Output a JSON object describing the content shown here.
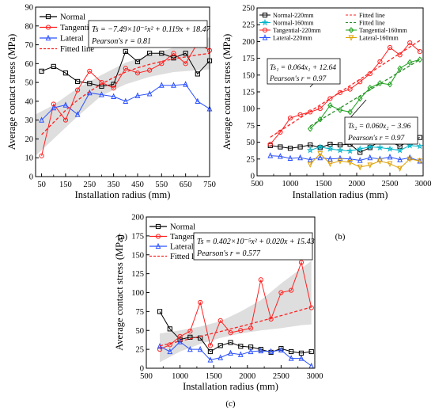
{
  "chart_data": [
    {
      "panel_label": "(a)",
      "type": "line",
      "xlabel": "Installation radius (mm)",
      "ylabel": "Average contact stress (MPa)",
      "xlim": [
        25,
        750
      ],
      "ylim": [
        0,
        90
      ],
      "xticks": [
        50,
        150,
        250,
        350,
        450,
        550,
        650,
        750
      ],
      "xminor": [
        100,
        200,
        300,
        400,
        500,
        600,
        700
      ],
      "yticks": [
        0,
        10,
        20,
        30,
        40,
        50,
        60,
        70,
        80,
        90
      ],
      "legend_position": "top-left",
      "series": [
        {
          "name": "Normal",
          "color": "#000000",
          "marker": "square",
          "x": [
            50,
            100,
            150,
            200,
            250,
            300,
            350,
            400,
            450,
            500,
            550,
            600,
            650,
            700,
            750
          ],
          "y": [
            56,
            58.5,
            55,
            50.5,
            49.5,
            48,
            49,
            66.5,
            61,
            65.5,
            65.5,
            63,
            65.5,
            54.5,
            61.5
          ]
        },
        {
          "name": "Tangential",
          "color": "#ff2020",
          "marker": "circle",
          "x": [
            50,
            100,
            150,
            200,
            250,
            300,
            350,
            400,
            450,
            500,
            550,
            600,
            650,
            700,
            750
          ],
          "y": [
            11,
            38.5,
            30,
            46,
            56,
            50,
            47,
            57.5,
            55,
            56.5,
            60,
            65.5,
            60,
            71,
            67
          ]
        },
        {
          "name": "Lateral",
          "color": "#2a50ff",
          "marker": "triangle",
          "x": [
            50,
            100,
            150,
            200,
            250,
            300,
            350,
            400,
            450,
            500,
            550,
            600,
            650,
            700,
            750
          ],
          "y": [
            30,
            36.5,
            38,
            33,
            44.5,
            43.5,
            42.5,
            40,
            43,
            44,
            48.5,
            48.5,
            49,
            40,
            36
          ]
        },
        {
          "name": "Fitted line",
          "color": "#ff2020",
          "dash": true,
          "x": [
            50,
            100,
            150,
            200,
            250,
            300,
            350,
            400,
            450,
            500,
            550,
            600,
            650,
            700,
            750
          ],
          "y": [
            22.3,
            28.8,
            35.2,
            40.6,
            45.2,
            49.2,
            52.6,
            55.5,
            57.8,
            59.6,
            61.2,
            62.5,
            63.6,
            64.6,
            65.5
          ]
        }
      ],
      "band": {
        "x": [
          25,
          100,
          200,
          300,
          400,
          500,
          600,
          700,
          750
        ],
        "lower": [
          11,
          20,
          32,
          43,
          49,
          53,
          55.5,
          56.5,
          57
        ],
        "upper": [
          33,
          38,
          47,
          54,
          60.5,
          64.5,
          68.5,
          72,
          74
        ]
      },
      "annotation": {
        "equation": "Ts = −7.49×10⁻⁵x² + 0.119x + 18.47",
        "pearson": "Pearson's r = 0.81"
      }
    },
    {
      "panel_label": "(b)",
      "type": "line",
      "xlabel": "Installation radius (mm)",
      "ylabel": "Average contact stress (MPa)",
      "xlim": [
        500,
        3000
      ],
      "ylim": [
        0,
        250
      ],
      "xticks": [
        500,
        1000,
        1500,
        2000,
        2500,
        3000
      ],
      "xminor": [
        750,
        1250,
        1750,
        2250,
        2750
      ],
      "yticks": [
        0,
        25,
        50,
        75,
        100,
        125,
        150,
        175,
        200,
        225,
        250
      ],
      "legend_position": "top",
      "legend": [
        {
          "name": "Normal-220mm",
          "color": "#000000",
          "marker": "square"
        },
        {
          "name": "Fitted line",
          "color": "#ff2020",
          "dash": true
        },
        {
          "name": "Normal-160mm",
          "color": "#00b4c8",
          "marker": "star"
        },
        {
          "name": "Fitted line",
          "color": "#2a8a2a",
          "dash": true
        },
        {
          "name": "Tangential-220mm",
          "color": "#ff2020",
          "marker": "circle"
        },
        {
          "name": "Tangential-160mm",
          "color": "#1aa01a",
          "marker": "diamond"
        },
        {
          "name": "Lateral-220mm",
          "color": "#2a50ff",
          "marker": "triangle"
        },
        {
          "name": "Lateral-160mm",
          "color": "#e0a000",
          "marker": "triangle-down"
        }
      ],
      "series": [
        {
          "name": "Normal-220mm",
          "color": "#000000",
          "marker": "square",
          "x": [
            700,
            850,
            1000,
            1150,
            1300,
            1450,
            1600,
            1750,
            1900,
            2050,
            2200,
            2350,
            2500,
            2650,
            2800,
            2950
          ],
          "y": [
            45,
            43,
            41,
            43,
            46,
            42,
            47,
            46,
            47,
            35,
            42,
            52,
            51,
            44,
            53,
            57
          ]
        },
        {
          "name": "Tangential-220mm",
          "color": "#ff2020",
          "marker": "circle",
          "x": [
            700,
            850,
            1000,
            1150,
            1300,
            1450,
            1600,
            1750,
            1900,
            2050,
            2200,
            2350,
            2500,
            2650,
            2800,
            2950
          ],
          "y": [
            47,
            65,
            86,
            91,
            95,
            100,
            115,
            124,
            129,
            140,
            152,
            170,
            191,
            180,
            198,
            185
          ]
        },
        {
          "name": "Lateral-220mm",
          "color": "#2a50ff",
          "marker": "triangle",
          "x": [
            700,
            850,
            1000,
            1150,
            1300,
            1450,
            1600,
            1750,
            1900,
            2050,
            2200,
            2350,
            2500,
            2650,
            2800,
            2950
          ],
          "y": [
            30,
            29,
            26,
            27,
            24,
            27,
            25,
            26,
            25,
            23,
            27,
            25,
            28,
            24,
            27,
            22
          ]
        },
        {
          "name": "Normal-160mm",
          "color": "#00b4c8",
          "marker": "star",
          "x": [
            1300,
            1450,
            1600,
            1750,
            1900,
            2050,
            2200,
            2350,
            2500,
            2650,
            2800,
            2950
          ],
          "y": [
            38,
            43,
            40,
            38,
            37,
            40,
            43,
            42,
            40,
            38,
            45,
            44
          ]
        },
        {
          "name": "Tangential-160mm",
          "color": "#1aa01a",
          "marker": "diamond",
          "x": [
            1300,
            1450,
            1600,
            1750,
            1900,
            2050,
            2200,
            2350,
            2500,
            2650,
            2800,
            2950
          ],
          "y": [
            70,
            84,
            105,
            98,
            95,
            115,
            131,
            138,
            136,
            160,
            169,
            173
          ]
        },
        {
          "name": "Lateral-160mm",
          "color": "#e0a000",
          "marker": "triangle-down",
          "x": [
            1300,
            1450,
            1600,
            1750,
            1900,
            2050,
            2200,
            2350,
            2500,
            2650,
            2800,
            2950
          ],
          "y": [
            17,
            33,
            18,
            22,
            20,
            13,
            16,
            22,
            18,
            11,
            25,
            22
          ]
        },
        {
          "name": "Fitted line",
          "color": "#ff2020",
          "dash": true,
          "x": [
            700,
            2950
          ],
          "y": [
            57.4,
            201.4
          ]
        },
        {
          "name": "Fitted line",
          "color": "#2a8a2a",
          "dash": true,
          "x": [
            1300,
            2950
          ],
          "y": [
            74.0,
            173.0
          ]
        }
      ],
      "annotations": [
        {
          "equation": "Ts₁ = 0.064x₁ + 12.64",
          "pearson": "Pearson's r = 0.97"
        },
        {
          "equation": "Ts₂ = 0.060x₂ − 3.96",
          "pearson": "Pearson's r = 0.97"
        }
      ]
    },
    {
      "panel_label": "(c)",
      "type": "line",
      "xlabel": "Installation radius (mm)",
      "ylabel": "Average contact stress (MPa)",
      "xlim": [
        500,
        3000
      ],
      "ylim": [
        0,
        200
      ],
      "xticks": [
        500,
        1000,
        1500,
        2000,
        2500,
        3000
      ],
      "xminor": [
        750,
        1250,
        1750,
        2250,
        2750
      ],
      "yticks": [
        0,
        25,
        50,
        75,
        100,
        125,
        150,
        175,
        200
      ],
      "legend_position": "top-left",
      "series": [
        {
          "name": "Normal",
          "color": "#000000",
          "marker": "square",
          "x": [
            700,
            850,
            1000,
            1150,
            1300,
            1450,
            1600,
            1750,
            1900,
            2050,
            2200,
            2350,
            2500,
            2650,
            2800,
            2950
          ],
          "y": [
            75,
            52,
            38,
            41,
            40,
            22,
            30,
            34,
            29,
            28,
            25,
            21,
            26,
            22,
            20,
            22
          ]
        },
        {
          "name": "Tangential",
          "color": "#ff2020",
          "marker": "circle",
          "x": [
            700,
            850,
            1000,
            1150,
            1300,
            1450,
            1600,
            1750,
            1900,
            2050,
            2200,
            2350,
            2500,
            2650,
            2800,
            2950
          ],
          "y": [
            25,
            31,
            42,
            49,
            87,
            30,
            63,
            47,
            50,
            53,
            117,
            65,
            100,
            103,
            140,
            80
          ]
        },
        {
          "name": "Lateral",
          "color": "#2a50ff",
          "marker": "triangle",
          "x": [
            700,
            850,
            1000,
            1150,
            1300,
            1450,
            1600,
            1750,
            1900,
            2050,
            2200,
            2350,
            2500,
            2650,
            2800,
            2950
          ],
          "y": [
            29,
            22,
            35,
            25,
            25,
            11,
            14,
            20,
            18,
            22,
            23,
            22,
            24,
            13,
            13,
            3
          ]
        },
        {
          "name": "Fitted line",
          "color": "#ff2020",
          "dash": true,
          "x": [
            700,
            1000,
            1300,
            1600,
            1900,
            2200,
            2500,
            2800,
            2950
          ],
          "y": [
            29.6,
            35.8,
            42.1,
            48.6,
            55.3,
            62.3,
            69.5,
            77.1,
            80.9
          ]
        }
      ],
      "band": {
        "x": [
          700,
          1000,
          1300,
          1600,
          1900,
          2200,
          2500,
          2800,
          2950
        ],
        "lower": [
          8,
          22,
          32,
          40,
          46,
          50,
          53,
          57,
          58
        ],
        "upper": [
          46,
          50,
          55,
          62,
          75,
          90,
          112,
          132,
          142
        ]
      },
      "annotation": {
        "equation": "Ts = 0.402×10⁻⁵x² + 0.020x + 15.43",
        "pearson": "Pearson's r = 0.577"
      }
    }
  ]
}
